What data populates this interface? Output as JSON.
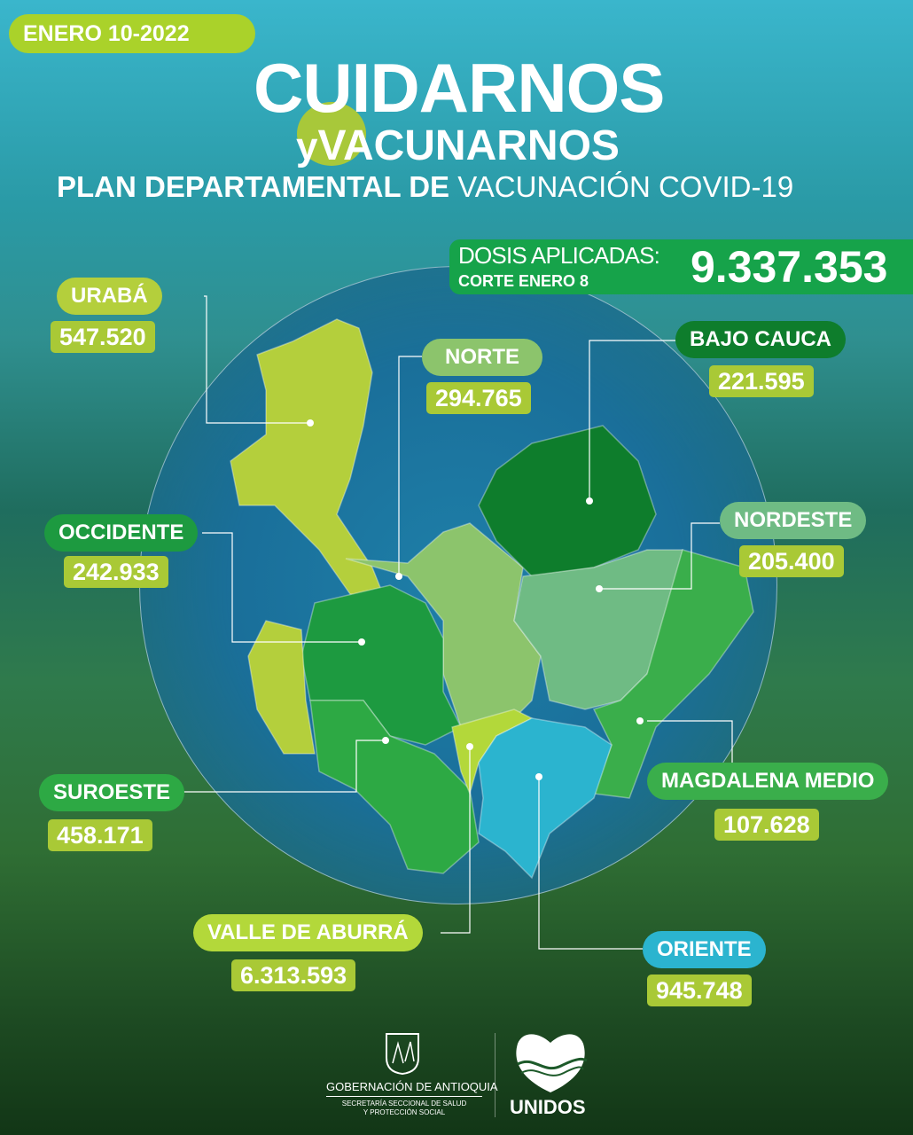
{
  "header": {
    "date": "ENERO 10-2022",
    "title_line1": "CUIDARNOS",
    "title_y": "y",
    "title_line2": "VACUNARNOS",
    "subtitle_bold": "PLAN DEPARTAMENTAL DE",
    "subtitle_light": "VACUNACIÓN COVID-19"
  },
  "total": {
    "label": "DOSIS APLICADAS:",
    "cutoff": "CORTE ENERO 8",
    "value": "9.337.353"
  },
  "regions": [
    {
      "name": "URABÁ",
      "value": "547.520",
      "color": "#b4cf3c"
    },
    {
      "name": "NORTE",
      "value": "294.765",
      "color": "#8cc46c"
    },
    {
      "name": "BAJO CAUCA",
      "value": "221.595",
      "color": "#0e7d2c"
    },
    {
      "name": "NORDESTE",
      "value": "205.400",
      "color": "#6fbb84"
    },
    {
      "name": "OCCIDENTE",
      "value": "242.933",
      "color": "#1d9a40"
    },
    {
      "name": "SUROESTE",
      "value": "458.171",
      "color": "#2da944"
    },
    {
      "name": "MAGDALENA MEDIO",
      "value": "107.628",
      "color": "#3aae4b"
    },
    {
      "name": "VALLE  DE ABURRÁ",
      "value": "6.313.593",
      "color": "#b3d83a"
    },
    {
      "name": "ORIENTE",
      "value": "945.748",
      "color": "#2bb4cf"
    }
  ],
  "footer": {
    "gov": "GOBERNACIÓN DE ANTIOQUIA",
    "dept1": "SECRETARÍA SECCIONAL DE SALUD",
    "dept2": "Y PROTECCIÓN SOCIAL",
    "brand": "UNIDOS"
  }
}
